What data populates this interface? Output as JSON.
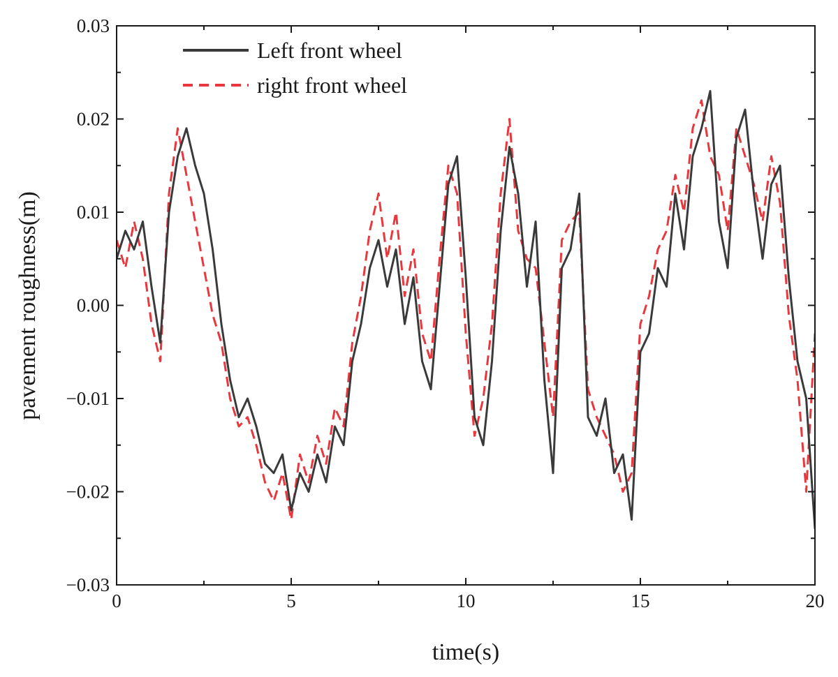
{
  "chart_data": {
    "type": "line",
    "title": "",
    "xlabel": "time(s)",
    "ylabel": "pavement roughness(m)",
    "xlim": [
      0,
      20
    ],
    "ylim": [
      -0.03,
      0.03
    ],
    "xticks": [
      0,
      5,
      10,
      15,
      20
    ],
    "xtick_labels": [
      "0",
      "5",
      "10",
      "15",
      "20"
    ],
    "yticks": [
      -0.03,
      -0.02,
      -0.01,
      0.0,
      0.01,
      0.02,
      0.03
    ],
    "ytick_labels": [
      "−0.03",
      "−0.02",
      "−0.01",
      "0.00",
      "0.01",
      "0.02",
      "0.03"
    ],
    "grid": false,
    "legend_position": "top-left",
    "series": [
      {
        "name": "Left front wheel",
        "color": "#3a3a3a",
        "line_style": "solid",
        "x": [
          0,
          0.25,
          0.5,
          0.75,
          1.0,
          1.25,
          1.5,
          1.75,
          2.0,
          2.25,
          2.5,
          2.75,
          3.0,
          3.25,
          3.5,
          3.75,
          4.0,
          4.25,
          4.5,
          4.75,
          5.0,
          5.25,
          5.5,
          5.75,
          6.0,
          6.25,
          6.5,
          6.75,
          7.0,
          7.25,
          7.5,
          7.75,
          8.0,
          8.25,
          8.5,
          8.75,
          9.0,
          9.25,
          9.5,
          9.75,
          10.0,
          10.25,
          10.5,
          10.75,
          11.0,
          11.25,
          11.5,
          11.75,
          12.0,
          12.25,
          12.5,
          12.75,
          13.0,
          13.25,
          13.5,
          13.75,
          14.0,
          14.25,
          14.5,
          14.75,
          15.0,
          15.25,
          15.5,
          15.75,
          16.0,
          16.25,
          16.5,
          16.75,
          17.0,
          17.25,
          17.5,
          17.75,
          18.0,
          18.25,
          18.5,
          18.75,
          19.0,
          19.25,
          19.5,
          19.75,
          20.0
        ],
        "y": [
          0.005,
          0.008,
          0.006,
          0.009,
          0.002,
          -0.004,
          0.01,
          0.016,
          0.019,
          0.015,
          0.012,
          0.006,
          -0.002,
          -0.008,
          -0.012,
          -0.01,
          -0.013,
          -0.017,
          -0.018,
          -0.016,
          -0.022,
          -0.018,
          -0.02,
          -0.016,
          -0.019,
          -0.013,
          -0.015,
          -0.006,
          -0.002,
          0.004,
          0.007,
          0.002,
          0.006,
          -0.002,
          0.003,
          -0.006,
          -0.009,
          0.002,
          0.013,
          0.016,
          0.003,
          -0.012,
          -0.015,
          -0.006,
          0.008,
          0.017,
          0.012,
          0.002,
          0.009,
          -0.008,
          -0.018,
          0.004,
          0.006,
          0.012,
          -0.012,
          -0.014,
          -0.01,
          -0.018,
          -0.016,
          -0.023,
          -0.005,
          -0.003,
          0.004,
          0.002,
          0.012,
          0.006,
          0.016,
          0.019,
          0.023,
          0.009,
          0.004,
          0.018,
          0.021,
          0.012,
          0.005,
          0.013,
          0.015,
          0.003,
          -0.006,
          -0.01,
          -0.024
        ]
      },
      {
        "name": "right front wheel",
        "color": "#e8383d",
        "line_style": "dashed",
        "x": [
          0,
          0.25,
          0.5,
          0.75,
          1.0,
          1.25,
          1.5,
          1.75,
          2.0,
          2.25,
          2.5,
          2.75,
          3.0,
          3.25,
          3.5,
          3.75,
          4.0,
          4.25,
          4.5,
          4.75,
          5.0,
          5.25,
          5.5,
          5.75,
          6.0,
          6.25,
          6.5,
          6.75,
          7.0,
          7.25,
          7.5,
          7.75,
          8.0,
          8.25,
          8.5,
          8.75,
          9.0,
          9.25,
          9.5,
          9.75,
          10.0,
          10.25,
          10.5,
          10.75,
          11.0,
          11.25,
          11.5,
          11.75,
          12.0,
          12.25,
          12.5,
          12.75,
          13.0,
          13.25,
          13.5,
          13.75,
          14.0,
          14.25,
          14.5,
          14.75,
          15.0,
          15.25,
          15.5,
          15.75,
          16.0,
          16.25,
          16.5,
          16.75,
          17.0,
          17.25,
          17.5,
          17.75,
          18.0,
          18.25,
          18.5,
          18.75,
          19.0,
          19.25,
          19.5,
          19.75,
          20.0
        ],
        "y": [
          0.007,
          0.004,
          0.009,
          0.005,
          -0.002,
          -0.006,
          0.012,
          0.019,
          0.014,
          0.009,
          0.004,
          -0.001,
          -0.004,
          -0.01,
          -0.013,
          -0.012,
          -0.015,
          -0.019,
          -0.021,
          -0.018,
          -0.023,
          -0.016,
          -0.019,
          -0.014,
          -0.017,
          -0.011,
          -0.013,
          -0.004,
          0.001,
          0.008,
          0.012,
          0.005,
          0.01,
          0.001,
          0.006,
          -0.003,
          -0.006,
          0.005,
          0.015,
          0.012,
          -0.003,
          -0.014,
          -0.01,
          -0.002,
          0.012,
          0.02,
          0.008,
          0.005,
          0.004,
          -0.004,
          -0.012,
          0.007,
          0.009,
          0.01,
          -0.009,
          -0.012,
          -0.014,
          -0.016,
          -0.02,
          -0.018,
          -0.002,
          0.001,
          0.006,
          0.008,
          0.014,
          0.01,
          0.019,
          0.022,
          0.016,
          0.014,
          0.008,
          0.019,
          0.016,
          0.013,
          0.009,
          0.016,
          0.011,
          -0.001,
          -0.008,
          -0.02,
          -0.003
        ]
      }
    ]
  }
}
